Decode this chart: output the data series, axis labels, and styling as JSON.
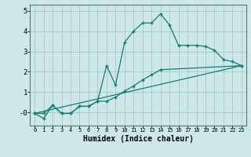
{
  "xlabel": "Humidex (Indice chaleur)",
  "bg_color": "#cce8e8",
  "grid_color": "#aacccc",
  "line_color": "#1a7a6e",
  "xlim": [
    -0.5,
    23.5
  ],
  "ylim": [
    -0.65,
    5.3
  ],
  "yticks": [
    0,
    1,
    2,
    3,
    4,
    5
  ],
  "ytick_labels": [
    "-0",
    "1",
    "2",
    "3",
    "4",
    "5"
  ],
  "xticks": [
    0,
    1,
    2,
    3,
    4,
    5,
    6,
    7,
    8,
    9,
    10,
    11,
    12,
    13,
    14,
    15,
    16,
    17,
    18,
    19,
    20,
    21,
    22,
    23
  ],
  "line1_x": [
    0,
    1,
    2,
    3,
    4,
    5,
    6,
    7,
    8,
    9,
    10,
    11,
    12,
    13,
    14,
    15,
    16,
    17,
    18,
    19,
    20,
    21,
    22,
    23
  ],
  "line1_y": [
    -0.05,
    -0.3,
    0.35,
    -0.05,
    -0.05,
    0.3,
    0.3,
    0.55,
    2.3,
    1.35,
    3.45,
    4.0,
    4.4,
    4.4,
    4.85,
    4.3,
    3.3,
    3.3,
    3.3,
    3.25,
    3.05,
    2.6,
    2.5,
    2.3
  ],
  "line2_x": [
    0,
    1,
    2,
    3,
    4,
    5,
    6,
    7,
    8,
    9,
    10,
    11,
    12,
    13,
    14,
    23
  ],
  "line2_y": [
    -0.05,
    -0.05,
    0.35,
    -0.05,
    -0.05,
    0.3,
    0.3,
    0.55,
    0.55,
    0.75,
    1.05,
    1.3,
    1.6,
    1.85,
    2.1,
    2.3
  ],
  "line3_x": [
    0,
    23
  ],
  "line3_y": [
    -0.05,
    2.3
  ]
}
